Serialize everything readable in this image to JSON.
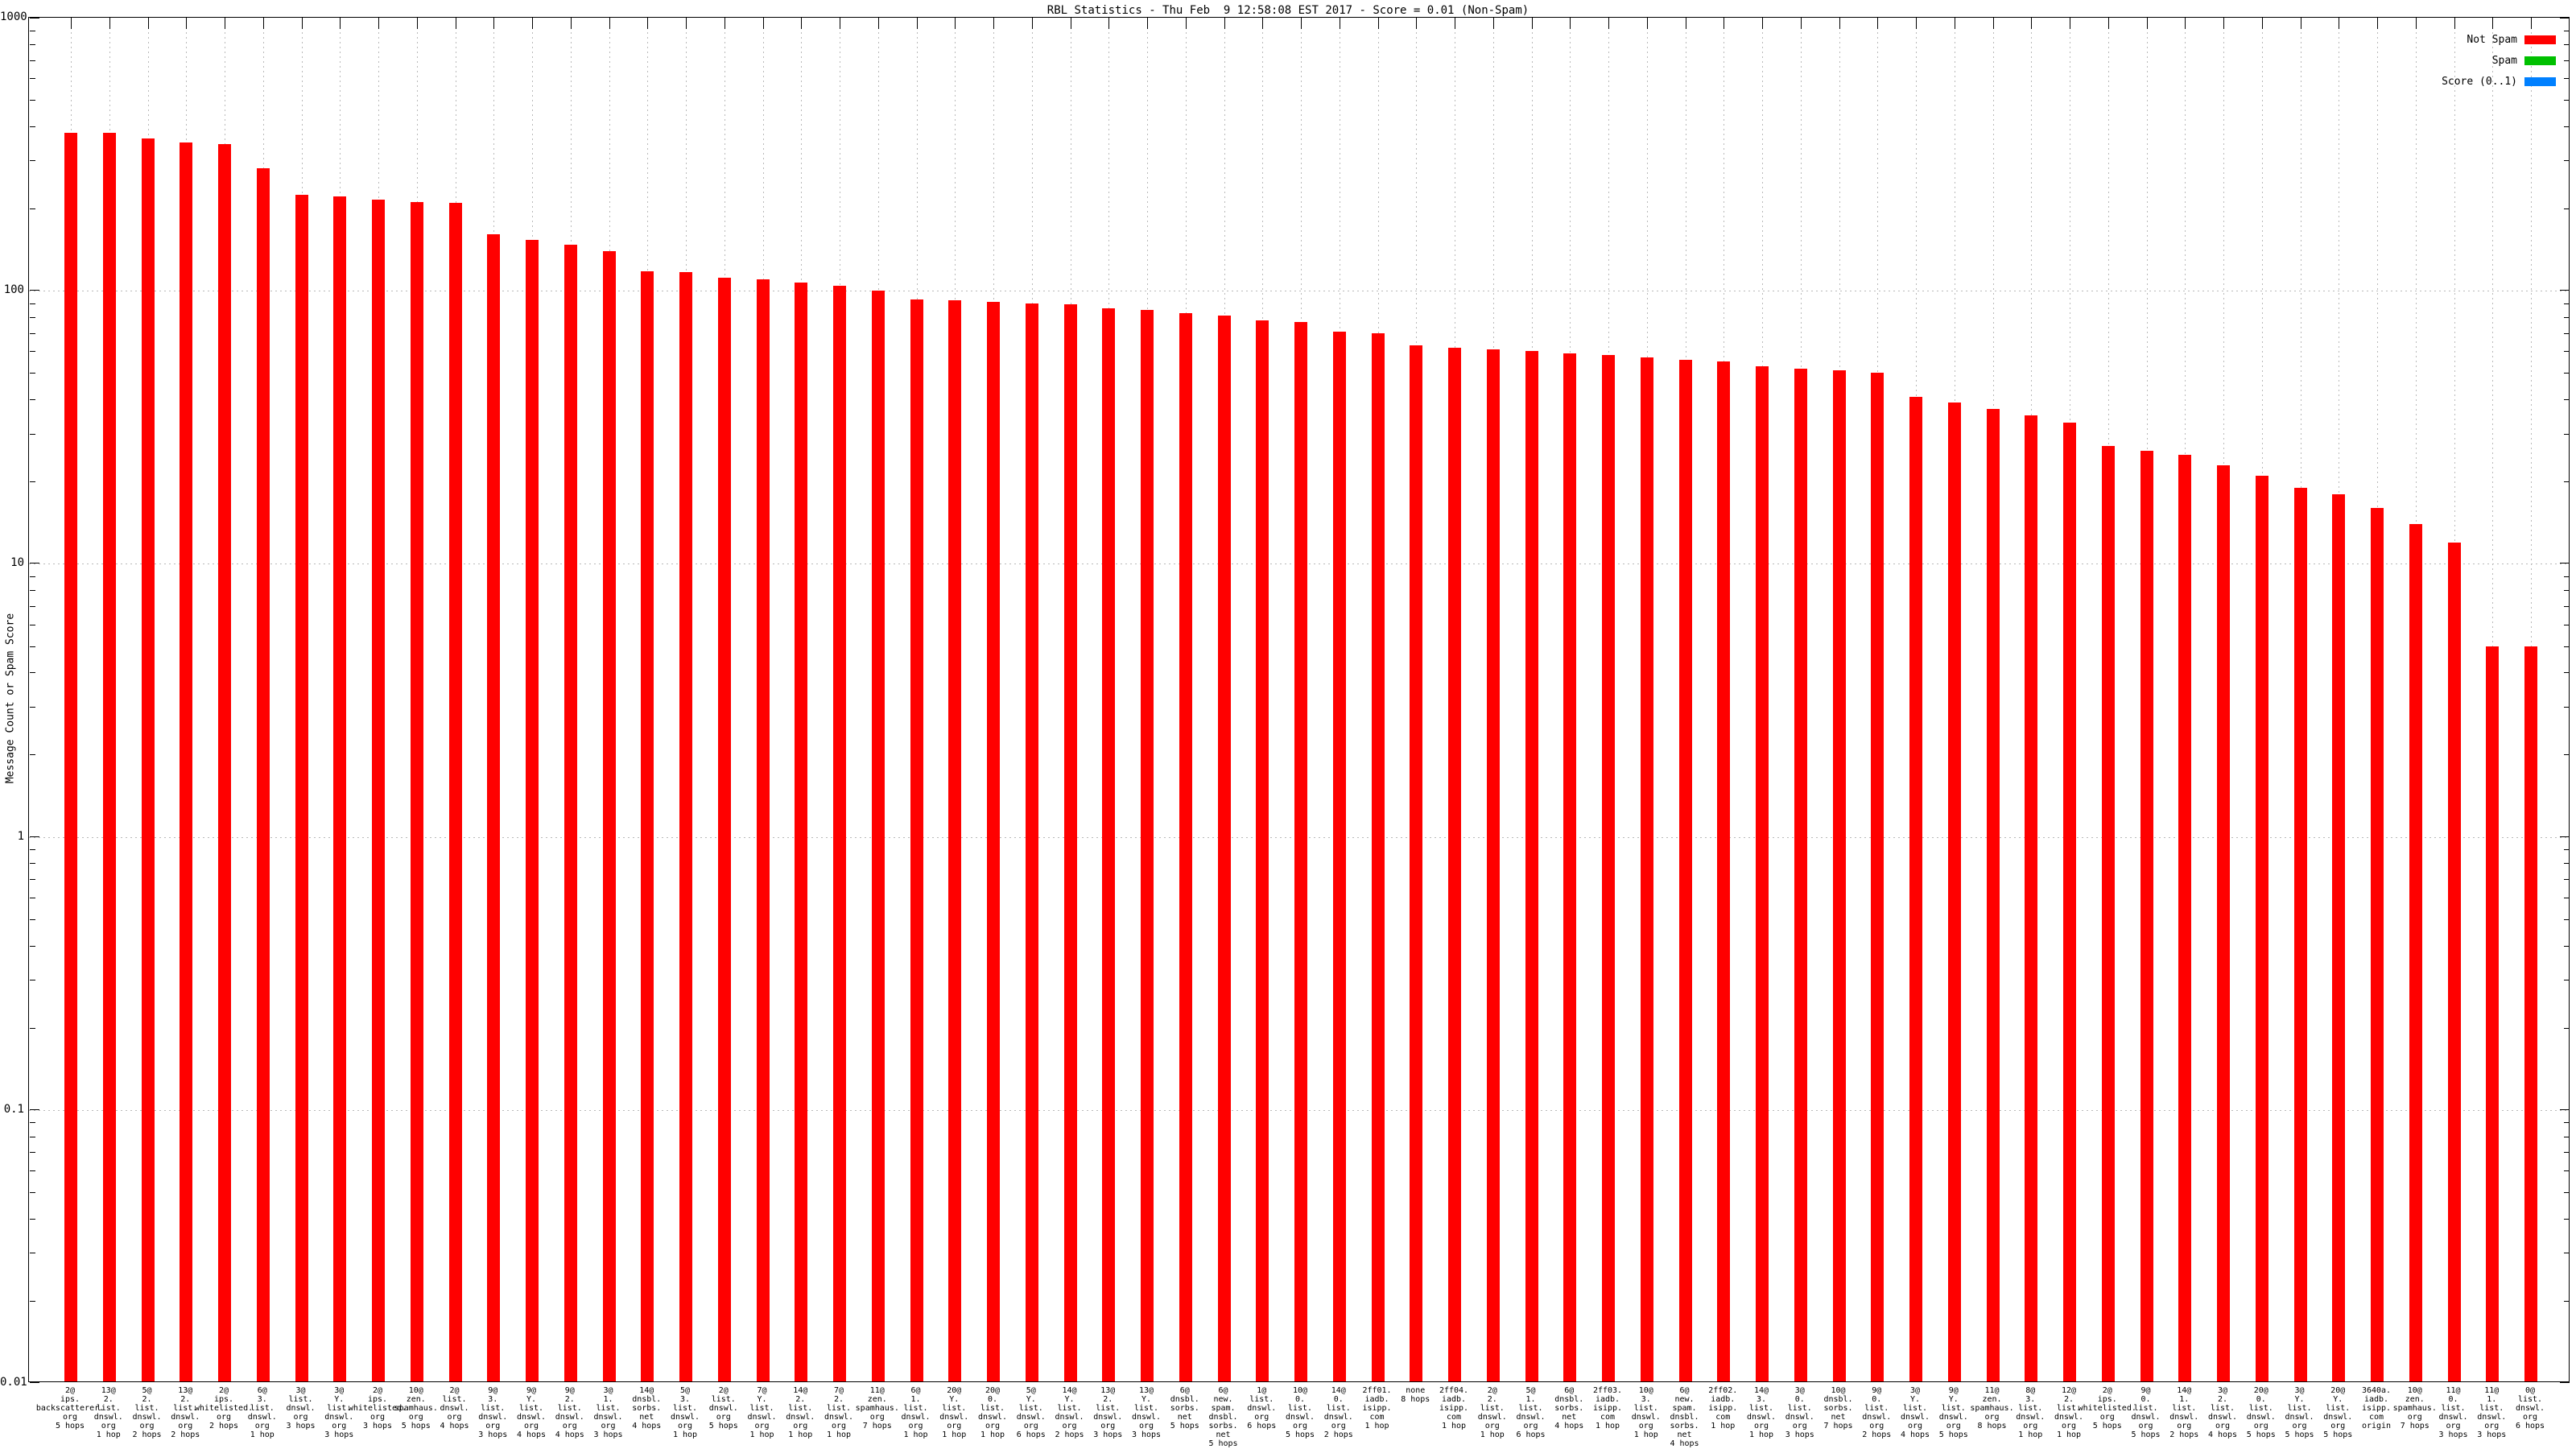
{
  "chart_data": {
    "type": "bar",
    "title": "RBL Statistics - Thu Feb  9 12:58:08 EST 2017 - Score = 0.01 (Non-Spam)",
    "xlabel": "",
    "ylabel": "Message Count or Spam Score",
    "y_scale": "log",
    "ylim": [
      0.01,
      1000
    ],
    "ytick_labels": [
      "1000",
      "100",
      "10",
      "1",
      "0.1",
      "0.01"
    ],
    "grid": true,
    "legend_position": "top-right",
    "series_name": "Not Spam",
    "legend": [
      {
        "label": "Not Spam",
        "color": "#ff0000"
      },
      {
        "label": "Spam",
        "color": "#00c000"
      },
      {
        "label": "Score (0..1)",
        "color": "#0080ff"
      }
    ],
    "bars": [
      {
        "label_lines": [
          "2@",
          "ips.",
          "backscatterer.",
          "org",
          "5 hops"
        ],
        "value": 380
      },
      {
        "label_lines": [
          "13@",
          "2.",
          "list.",
          "dnswl.",
          "org",
          "1 hop"
        ],
        "value": 378
      },
      {
        "label_lines": [
          "5@",
          "2.",
          "list.",
          "dnswl.",
          "org",
          "2 hops"
        ],
        "value": 362
      },
      {
        "label_lines": [
          "13@",
          "2.",
          "list.",
          "dnswl.",
          "org",
          "2 hops"
        ],
        "value": 350
      },
      {
        "label_lines": [
          "2@",
          "ips.",
          "whitelisted.",
          "org",
          "2 hops"
        ],
        "value": 344
      },
      {
        "label_lines": [
          "6@",
          "3.",
          "list.",
          "dnswl.",
          "org",
          "1 hop"
        ],
        "value": 281
      },
      {
        "label_lines": [
          "3@",
          "list.",
          "dnswl.",
          "org",
          "3 hops"
        ],
        "value": 225
      },
      {
        "label_lines": [
          "3@",
          "Y.",
          "list.",
          "dnswl.",
          "org",
          "3 hops"
        ],
        "value": 222
      },
      {
        "label_lines": [
          "2@",
          "ips.",
          "whitelisted.",
          "org",
          "3 hops"
        ],
        "value": 216
      },
      {
        "label_lines": [
          "10@",
          "zen.",
          "spamhaus.",
          "org",
          "5 hops"
        ],
        "value": 211
      },
      {
        "label_lines": [
          "2@",
          "list.",
          "dnswl.",
          "org",
          "4 hops"
        ],
        "value": 210
      },
      {
        "label_lines": [
          "9@",
          "3.",
          "list.",
          "dnswl.",
          "org",
          "3 hops"
        ],
        "value": 161
      },
      {
        "label_lines": [
          "9@",
          "Y.",
          "list.",
          "dnswl.",
          "org",
          "4 hops"
        ],
        "value": 154
      },
      {
        "label_lines": [
          "9@",
          "2.",
          "list.",
          "dnswl.",
          "org",
          "4 hops"
        ],
        "value": 147
      },
      {
        "label_lines": [
          "3@",
          "1.",
          "list.",
          "dnswl.",
          "org",
          "3 hops"
        ],
        "value": 140
      },
      {
        "label_lines": [
          "14@",
          "dnsbl.",
          "sorbs.",
          "net",
          "4 hops"
        ],
        "value": 118
      },
      {
        "label_lines": [
          "5@",
          "3.",
          "list.",
          "dnswl.",
          "org",
          "1 hop"
        ],
        "value": 117
      },
      {
        "label_lines": [
          "2@",
          "list.",
          "dnswl.",
          "org",
          "5 hops"
        ],
        "value": 112
      },
      {
        "label_lines": [
          "7@",
          "Y.",
          "list.",
          "dnswl.",
          "org",
          "1 hop"
        ],
        "value": 110
      },
      {
        "label_lines": [
          "14@",
          "2.",
          "list.",
          "dnswl.",
          "org",
          "1 hop"
        ],
        "value": 107
      },
      {
        "label_lines": [
          "7@",
          "2.",
          "list.",
          "dnswl.",
          "org",
          "1 hop"
        ],
        "value": 104
      },
      {
        "label_lines": [
          "11@",
          "zen.",
          "spamhaus.",
          "org",
          "7 hops"
        ],
        "value": 100
      },
      {
        "label_lines": [
          "6@",
          "1.",
          "list.",
          "dnswl.",
          "org",
          "1 hop"
        ],
        "value": 93
      },
      {
        "label_lines": [
          "20@",
          "Y.",
          "list.",
          "dnswl.",
          "org",
          "1 hop"
        ],
        "value": 92
      },
      {
        "label_lines": [
          "20@",
          "0.",
          "list.",
          "dnswl.",
          "org",
          "1 hop"
        ],
        "value": 91
      },
      {
        "label_lines": [
          "5@",
          "Y.",
          "list.",
          "dnswl.",
          "org",
          "6 hops"
        ],
        "value": 90
      },
      {
        "label_lines": [
          "14@",
          "Y.",
          "list.",
          "dnswl.",
          "org",
          "2 hops"
        ],
        "value": 89
      },
      {
        "label_lines": [
          "13@",
          "2.",
          "list.",
          "dnswl.",
          "org",
          "3 hops"
        ],
        "value": 86
      },
      {
        "label_lines": [
          "13@",
          "Y.",
          "list.",
          "dnswl.",
          "org",
          "3 hops"
        ],
        "value": 85
      },
      {
        "label_lines": [
          "6@",
          "dnsbl.",
          "sorbs.",
          "net",
          "5 hops"
        ],
        "value": 83
      },
      {
        "label_lines": [
          "6@",
          "new.",
          "spam.",
          "dnsbl.",
          "sorbs.",
          "net",
          "5 hops"
        ],
        "value": 81
      },
      {
        "label_lines": [
          "1@",
          "list.",
          "dnswl.",
          "org",
          "6 hops"
        ],
        "value": 78
      },
      {
        "label_lines": [
          "10@",
          "0.",
          "list.",
          "dnswl.",
          "org",
          "5 hops"
        ],
        "value": 77
      },
      {
        "label_lines": [
          "14@",
          "0.",
          "list.",
          "dnswl.",
          "org",
          "2 hops"
        ],
        "value": 71
      },
      {
        "label_lines": [
          "2ff01.",
          "iadb.",
          "isipp.",
          "com",
          "1 hop"
        ],
        "value": 70
      },
      {
        "label_lines": [
          "none",
          "8 hops"
        ],
        "value": 63
      },
      {
        "label_lines": [
          "2ff04.",
          "iadb.",
          "isipp.",
          "com",
          "1 hop"
        ],
        "value": 62
      },
      {
        "label_lines": [
          "2@",
          "2.",
          "list.",
          "dnswl.",
          "org",
          "1 hop"
        ],
        "value": 61
      },
      {
        "label_lines": [
          "5@",
          "1.",
          "list.",
          "dnswl.",
          "org",
          "6 hops"
        ],
        "value": 60
      },
      {
        "label_lines": [
          "6@",
          "dnsbl.",
          "sorbs.",
          "net",
          "4 hops"
        ],
        "value": 59
      },
      {
        "label_lines": [
          "2ff03.",
          "iadb.",
          "isipp.",
          "com",
          "1 hop"
        ],
        "value": 58
      },
      {
        "label_lines": [
          "10@",
          "3.",
          "list.",
          "dnswl.",
          "org",
          "1 hop"
        ],
        "value": 57
      },
      {
        "label_lines": [
          "6@",
          "new.",
          "spam.",
          "dnsbl.",
          "sorbs.",
          "net",
          "4 hops"
        ],
        "value": 56
      },
      {
        "label_lines": [
          "2ff02.",
          "iadb.",
          "isipp.",
          "com",
          "1 hop"
        ],
        "value": 55
      },
      {
        "label_lines": [
          "14@",
          "3.",
          "list.",
          "dnswl.",
          "org",
          "1 hop"
        ],
        "value": 53
      },
      {
        "label_lines": [
          "3@",
          "0.",
          "list.",
          "dnswl.",
          "org",
          "3 hops"
        ],
        "value": 52
      },
      {
        "label_lines": [
          "10@",
          "dnsbl.",
          "sorbs.",
          "net",
          "7 hops"
        ],
        "value": 51
      },
      {
        "label_lines": [
          "9@",
          "0.",
          "list.",
          "dnswl.",
          "org",
          "2 hops"
        ],
        "value": 50
      },
      {
        "label_lines": [
          "3@",
          "Y.",
          "list.",
          "dnswl.",
          "org",
          "4 hops"
        ],
        "value": 41
      },
      {
        "label_lines": [
          "9@",
          "Y.",
          "list.",
          "dnswl.",
          "org",
          "5 hops"
        ],
        "value": 39
      },
      {
        "label_lines": [
          "11@",
          "zen.",
          "spamhaus.",
          "org",
          "8 hops"
        ],
        "value": 37
      },
      {
        "label_lines": [
          "8@",
          "3.",
          "list.",
          "dnswl.",
          "org",
          "1 hop"
        ],
        "value": 35
      },
      {
        "label_lines": [
          "12@",
          "2.",
          "list.",
          "dnswl.",
          "org",
          "1 hop"
        ],
        "value": 33
      },
      {
        "label_lines": [
          "2@",
          "ips.",
          "whitelisted.",
          "org",
          "5 hops"
        ],
        "value": 27
      },
      {
        "label_lines": [
          "9@",
          "0.",
          "list.",
          "dnswl.",
          "org",
          "5 hops"
        ],
        "value": 26
      },
      {
        "label_lines": [
          "14@",
          "1.",
          "list.",
          "dnswl.",
          "org",
          "2 hops"
        ],
        "value": 25
      },
      {
        "label_lines": [
          "3@",
          "2.",
          "list.",
          "dnswl.",
          "org",
          "4 hops"
        ],
        "value": 23
      },
      {
        "label_lines": [
          "20@",
          "0.",
          "list.",
          "dnswl.",
          "org",
          "5 hops"
        ],
        "value": 21
      },
      {
        "label_lines": [
          "3@",
          "Y.",
          "list.",
          "dnswl.",
          "org",
          "5 hops"
        ],
        "value": 19
      },
      {
        "label_lines": [
          "20@",
          "Y.",
          "list.",
          "dnswl.",
          "org",
          "5 hops"
        ],
        "value": 18
      },
      {
        "label_lines": [
          "3640a.",
          "iadb.",
          "isipp.",
          "com",
          "origin"
        ],
        "value": 16
      },
      {
        "label_lines": [
          "10@",
          "zen.",
          "spamhaus.",
          "org",
          "7 hops"
        ],
        "value": 14
      },
      {
        "label_lines": [
          "11@",
          "0.",
          "list.",
          "dnswl.",
          "org",
          "3 hops"
        ],
        "value": 12
      },
      {
        "label_lines": [
          "11@",
          "1.",
          "list.",
          "dnswl.",
          "org",
          "3 hops"
        ],
        "value": 5
      },
      {
        "label_lines": [
          "0@",
          "list.",
          "dnswl.",
          "org",
          "6 hops"
        ],
        "value": 5
      }
    ]
  }
}
